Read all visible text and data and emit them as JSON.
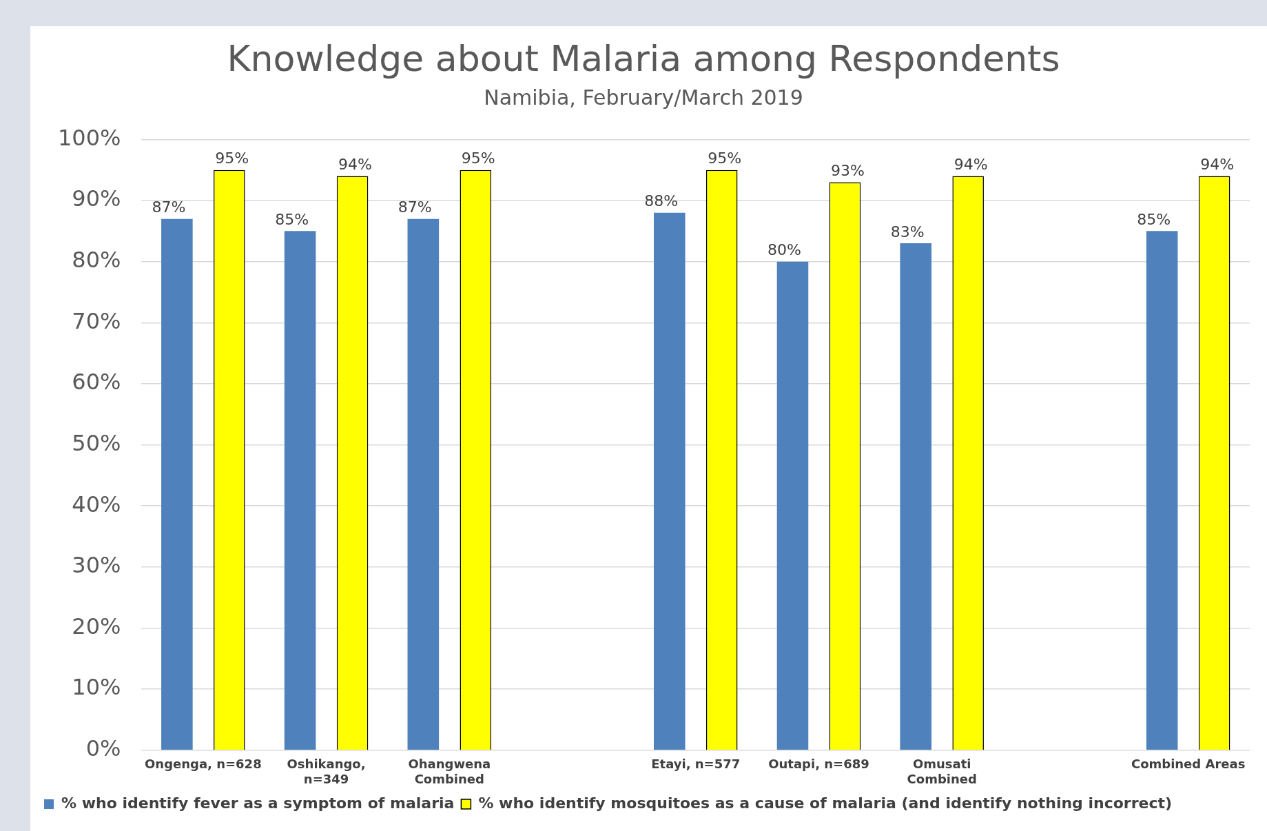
{
  "chart_data": {
    "type": "bar",
    "title": "Knowledge about Malaria among Respondents",
    "subtitle": "Namibia, February/March 2019",
    "categories": [
      "Ongenga, n=628",
      "Oshikango, n=349",
      "Ohangwena Combined",
      null,
      "Etayi, n=577",
      "Outapi, n=689",
      "Omusati Combined",
      null,
      "Combined Areas"
    ],
    "series": [
      {
        "name": "% who identify fever as a symptom of malaria",
        "color": "#4f81bd",
        "values": [
          87,
          85,
          87,
          null,
          88,
          80,
          83,
          null,
          85
        ],
        "value_labels": [
          "87%",
          "85%",
          "87%",
          null,
          "88%",
          "80%",
          "83%",
          null,
          "85%"
        ]
      },
      {
        "name": "% who identify mosquitoes as a cause of malaria (and identify nothing incorrect)",
        "color": "#ffff00",
        "values": [
          95,
          94,
          95,
          null,
          95,
          93,
          94,
          null,
          94
        ],
        "value_labels": [
          "95%",
          "94%",
          "95%",
          null,
          "95%",
          "93%",
          "94%",
          null,
          "94%"
        ]
      }
    ],
    "ylim": [
      0,
      100
    ],
    "yticks": [
      {
        "value": 0,
        "label": "0%"
      },
      {
        "value": 10,
        "label": "10%"
      },
      {
        "value": 20,
        "label": "20%"
      },
      {
        "value": 30,
        "label": "30%"
      },
      {
        "value": 40,
        "label": "40%"
      },
      {
        "value": 50,
        "label": "50%"
      },
      {
        "value": 60,
        "label": "60%"
      },
      {
        "value": 70,
        "label": "70%"
      },
      {
        "value": 80,
        "label": "80%"
      },
      {
        "value": 90,
        "label": "90%"
      },
      {
        "value": 100,
        "label": "100%"
      }
    ],
    "grid": "y",
    "legend": "bottom"
  }
}
